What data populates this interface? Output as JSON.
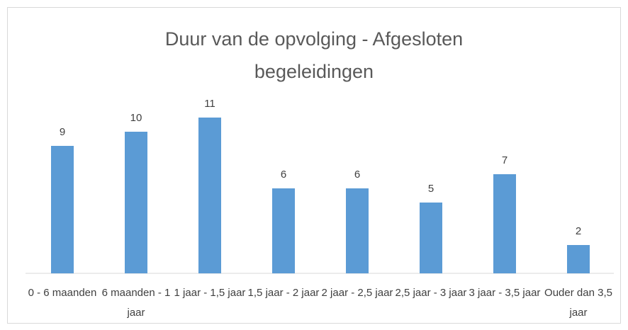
{
  "chart_data": {
    "type": "bar",
    "title": "Duur van de opvolging - Afgesloten begeleidingen",
    "categories": [
      "0 - 6 maanden",
      "6 maanden - 1 jaar",
      "1 jaar - 1,5 jaar",
      "1,5 jaar - 2 jaar",
      "2 jaar - 2,5 jaar",
      "2,5 jaar - 3 jaar",
      "3 jaar - 3,5 jaar",
      "Ouder dan 3,5 jaar"
    ],
    "values": [
      9,
      10,
      11,
      6,
      6,
      5,
      7,
      2
    ],
    "color": "#5b9bd5",
    "ylim": [
      0,
      12
    ]
  }
}
